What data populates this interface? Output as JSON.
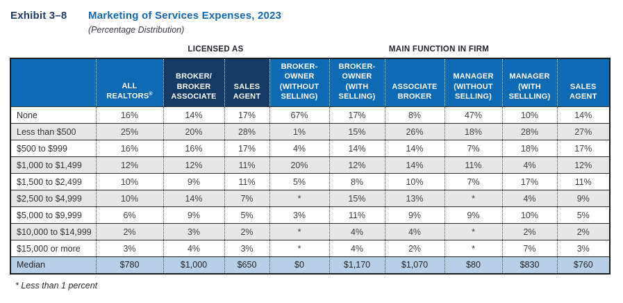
{
  "title": {
    "exhibit": "Exhibit 3–8",
    "heading": "Marketing of Services Expenses, 2023",
    "subtitle": "(Percentage Distribution)"
  },
  "groups": {
    "licensed_as": "LICENSED AS",
    "main_function": "MAIN FUNCTION IN FIRM"
  },
  "table": {
    "columns": [
      {
        "key": "expense-range",
        "label": "",
        "group": null
      },
      {
        "key": "all-realtors",
        "label": "ALL REALTORS®",
        "group": null
      },
      {
        "key": "broker-broker-associate",
        "label": "BROKER/ BROKER ASSOCIATE",
        "group": "licensed_as"
      },
      {
        "key": "sales-agent-licensed",
        "label": "SALES AGENT",
        "group": "licensed_as"
      },
      {
        "key": "broker-owner-without-selling",
        "label": "BROKER-OWNER (WITHOUT SELLING)",
        "group": "main_function"
      },
      {
        "key": "broker-owner-with-selling",
        "label": "BROKER-OWNER (WITH SELLING)",
        "group": "main_function"
      },
      {
        "key": "associate-broker",
        "label": "ASSOCIATE BROKER",
        "group": "main_function"
      },
      {
        "key": "manager-without-selling",
        "label": "MANAGER (WITHOUT SELLING)",
        "group": "main_function"
      },
      {
        "key": "manager-with-selling",
        "label": "MANAGER (WITH SELLLING)",
        "group": "main_function"
      },
      {
        "key": "sales-agent-main",
        "label": "SALES AGENT",
        "group": "main_function"
      }
    ],
    "rows": [
      {
        "key": "none",
        "label": "None",
        "values": [
          "16%",
          "14%",
          "17%",
          "67%",
          "17%",
          "8%",
          "47%",
          "10%",
          "14%"
        ],
        "median": false
      },
      {
        "key": "less-than-500",
        "label": "Less than $500",
        "values": [
          "25%",
          "20%",
          "28%",
          "1%",
          "15%",
          "26%",
          "18%",
          "28%",
          "27%"
        ],
        "median": false
      },
      {
        "key": "500-to-999",
        "label": "$500 to $999",
        "values": [
          "16%",
          "16%",
          "17%",
          "4%",
          "14%",
          "14%",
          "7%",
          "18%",
          "17%"
        ],
        "median": false
      },
      {
        "key": "1000-to-1499",
        "label": "$1,000 to $1,499",
        "values": [
          "12%",
          "12%",
          "11%",
          "20%",
          "12%",
          "14%",
          "11%",
          "4%",
          "12%"
        ],
        "median": false
      },
      {
        "key": "1500-to-2499",
        "label": "$1,500 to $2,499",
        "values": [
          "10%",
          "9%",
          "11%",
          "5%",
          "8%",
          "10%",
          "7%",
          "17%",
          "11%"
        ],
        "median": false
      },
      {
        "key": "2500-to-4999",
        "label": "$2,500 to $4,999",
        "values": [
          "10%",
          "14%",
          "7%",
          "*",
          "15%",
          "13%",
          "*",
          "4%",
          "9%"
        ],
        "median": false
      },
      {
        "key": "5000-to-9999",
        "label": "$5,000 to $9,999",
        "values": [
          "6%",
          "9%",
          "5%",
          "3%",
          "11%",
          "9%",
          "9%",
          "10%",
          "5%"
        ],
        "median": false
      },
      {
        "key": "10000-to-14999",
        "label": "$10,000 to $14,999",
        "values": [
          "2%",
          "3%",
          "2%",
          "*",
          "4%",
          "4%",
          "*",
          "2%",
          "2%"
        ],
        "median": false
      },
      {
        "key": "15000-or-more",
        "label": "$15,000 or more",
        "values": [
          "3%",
          "4%",
          "3%",
          "*",
          "4%",
          "2%",
          "*",
          "7%",
          "3%"
        ],
        "median": false
      },
      {
        "key": "median",
        "label": "Median",
        "values": [
          "$780",
          "$1,000",
          "$650",
          "$0",
          "$1,170",
          "$1,070",
          "$80",
          "$830",
          "$760"
        ],
        "median": true
      }
    ]
  },
  "footnote": "* Less than 1 percent",
  "colors": {
    "header_blue": "#0f6ab4",
    "header_navy": "#143a66",
    "median_row": "#b8cfe8",
    "zebra_gray": "#e6e6e6",
    "title_blue": "#1567b3",
    "exhibit_navy": "#203a64"
  }
}
